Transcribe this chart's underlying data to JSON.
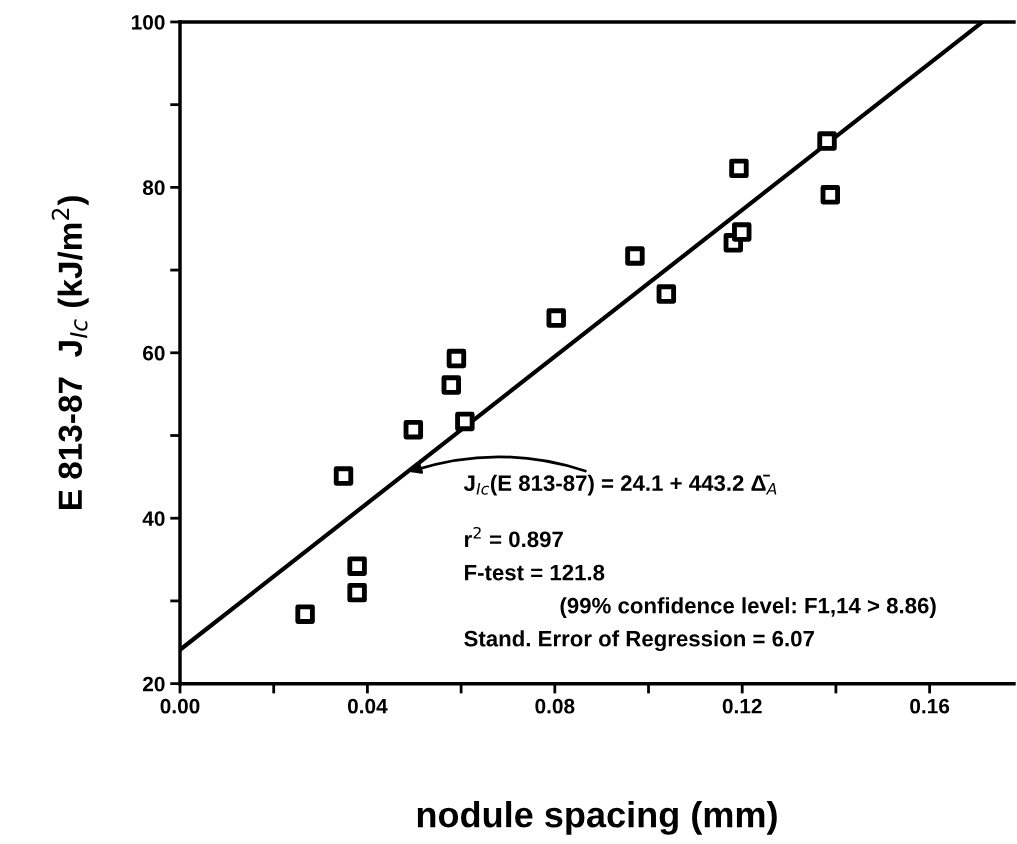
{
  "chart_data": {
    "type": "scatter",
    "xlabel": "nodule spacing (mm)",
    "ylabel": "E 813-87  J$_{Ic}$ (kJ/m$^{2}$)",
    "xlim": [
      0,
      0.178
    ],
    "ylim": [
      20,
      100
    ],
    "xticks": [
      {
        "value": 0,
        "label": "0.00"
      },
      {
        "value": 0.02,
        "label": null
      },
      {
        "value": 0.04,
        "label": "0.04"
      },
      {
        "value": 0.06,
        "label": null
      },
      {
        "value": 0.08,
        "label": "0.08"
      },
      {
        "value": 0.1,
        "label": null
      },
      {
        "value": 0.12,
        "label": "0.12"
      },
      {
        "value": 0.14,
        "label": null
      },
      {
        "value": 0.16,
        "label": "0.16"
      }
    ],
    "yticks": [
      20,
      {
        "value": 30,
        "label": null
      },
      40,
      {
        "value": 50,
        "label": null
      },
      60,
      {
        "value": 70,
        "label": null
      },
      80,
      {
        "value": 90,
        "label": null
      },
      100
    ],
    "grid": false,
    "series": [
      {
        "marker": "square",
        "color": "#000000",
        "x": [
          0.0267,
          0.0378,
          0.0378,
          0.0349,
          0.0498,
          0.0579,
          0.059,
          0.0608,
          0.0803,
          0.0971,
          0.1038,
          0.1181,
          0.1199,
          0.1193,
          0.1381,
          0.1388
        ],
        "values": [
          28.4,
          34.2,
          31.0,
          45.1,
          50.7,
          56.1,
          59.3,
          51.7,
          64.2,
          71.7,
          67.1,
          73.3,
          74.6,
          82.3,
          85.6,
          79.1
        ]
      },
      {
        "type": "line",
        "marker": "none",
        "color": "#000000",
        "x": [
          0,
          0.1713
        ],
        "values": [
          24.1,
          100.0
        ]
      }
    ],
    "annotations": [
      {
        "text": "J$_{Ic}$(E 813-87) = 24.1 + 443.2 Δ̄$_{A}$",
        "x": 0.0483,
        "y": 45.5
      },
      "r$^{2}$ = 0.897",
      "F-test = 121.8",
      "(99% confidence level: F1,14 > 8.86)",
      "Stand. Error of Regression = 6.07"
    ]
  }
}
